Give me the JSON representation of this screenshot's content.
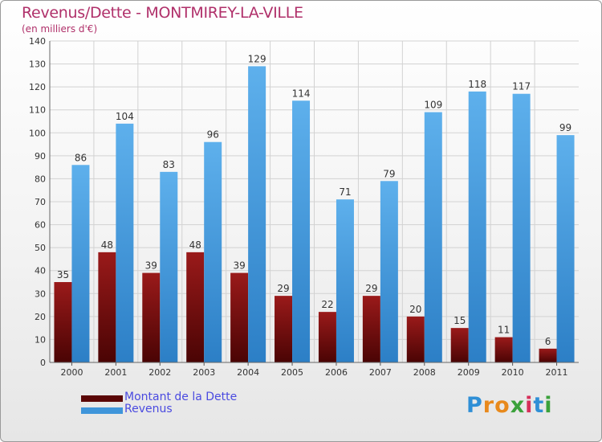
{
  "header": {
    "title": "Revenus/Dette - MONTMIREY-LA-VILLE",
    "subtitle": "(en milliers d'€)"
  },
  "legend": {
    "debt_label": "Montant de la Dette",
    "revenue_label": "Revenus"
  },
  "logo": {
    "text": "Proxiti"
  },
  "colors": {
    "debt": "#6b0a0a",
    "revenue": "#3f95da",
    "title": "#b0306a",
    "legend_text": "#4a4ae0"
  },
  "chart_data": {
    "type": "bar",
    "title": "Revenus/Dette - MONTMIREY-LA-VILLE",
    "ylabel": "(en milliers d'€)",
    "xlabel": "",
    "ylim": [
      0,
      140
    ],
    "ytick_step": 10,
    "grid": true,
    "legend_position": "bottom-left",
    "categories": [
      "2000",
      "2001",
      "2002",
      "2003",
      "2004",
      "2005",
      "2006",
      "2007",
      "2008",
      "2009",
      "2010",
      "2011"
    ],
    "series": [
      {
        "name": "Montant de la Dette",
        "values": [
          35,
          48,
          39,
          48,
          39,
          29,
          22,
          29,
          20,
          15,
          11,
          6
        ]
      },
      {
        "name": "Revenus",
        "values": [
          86,
          104,
          83,
          96,
          129,
          114,
          71,
          79,
          109,
          118,
          117,
          99
        ]
      }
    ]
  }
}
